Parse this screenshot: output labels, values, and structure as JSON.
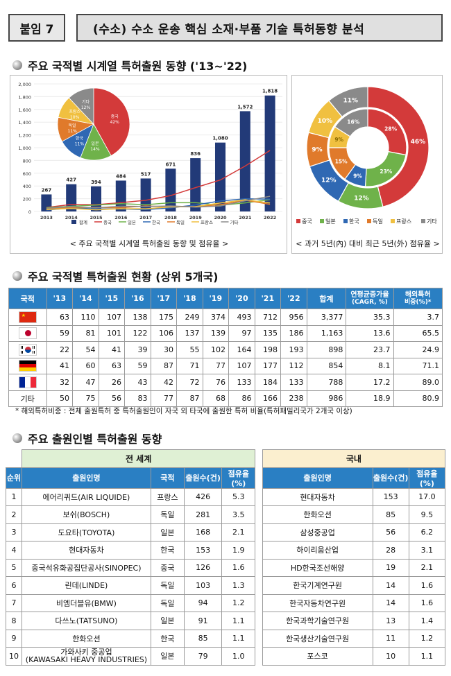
{
  "header": {
    "tag": "붙임 7",
    "title": "(수소) 수소 운송 핵심 소재·부품 기술 특허동향 분석"
  },
  "section1": {
    "title": "주요 국적별 시계열 특허출원 동향 ('13~'22)",
    "caption_left": "< 주요 국적별 시계열 특허출원 동향 및 점유율 >",
    "caption_right": "< 과거 5년(內) 대비 최근 5년(外) 점유율 >"
  },
  "chart_data": [
    {
      "type": "bar",
      "categories": [
        "2013",
        "2014",
        "2015",
        "2016",
        "2017",
        "2018",
        "2019",
        "2020",
        "2021",
        "2022"
      ],
      "series": [
        {
          "name": "합계",
          "values": [
            267,
            427,
            394,
            484,
            517,
            671,
            836,
            1080,
            1572,
            1818
          ],
          "color": "#223a78"
        },
        {
          "name": "중국",
          "values": [
            63,
            110,
            107,
            138,
            175,
            249,
            374,
            493,
            712,
            956
          ],
          "color": "#d33a3a"
        },
        {
          "name": "일본",
          "values": [
            59,
            81,
            101,
            122,
            106,
            137,
            139,
            97,
            135,
            186
          ],
          "color": "#6fb24a"
        },
        {
          "name": "한국",
          "values": [
            22,
            54,
            41,
            39,
            30,
            55,
            102,
            164,
            198,
            193
          ],
          "color": "#2f68b3"
        },
        {
          "name": "독일",
          "values": [
            41,
            60,
            63,
            59,
            87,
            71,
            77,
            107,
            177,
            112
          ],
          "color": "#e07a2b"
        },
        {
          "name": "프랑스",
          "values": [
            32,
            47,
            26,
            43,
            42,
            72,
            76,
            133,
            184,
            133
          ],
          "color": "#f0c040"
        },
        {
          "name": "기타",
          "values": [
            50,
            75,
            56,
            83,
            77,
            87,
            68,
            86,
            166,
            238
          ],
          "color": "#8a8a8a"
        }
      ],
      "ylim": [
        0,
        2000
      ],
      "yticks": [
        "0",
        "200",
        "400",
        "600",
        "800",
        "1,000",
        "1,200",
        "1,400",
        "1,600",
        "1,800",
        "2,000"
      ],
      "data_labels": [
        "267",
        "427",
        "394",
        "484",
        "517",
        "671",
        "836",
        "1,080",
        "1,572",
        "1,818"
      ],
      "legend": "bottom"
    },
    {
      "type": "pie",
      "labels": [
        "중국",
        "일본",
        "한국",
        "독일",
        "프랑스",
        "기타"
      ],
      "values": [
        42,
        14,
        11,
        11,
        10,
        12
      ],
      "label_text": [
        "중국\n42%",
        "일본\n14%",
        "한국\n11%",
        "독일\n11%",
        "프랑스\n10%",
        "기타\n12%"
      ],
      "colors": [
        "#d33a3a",
        "#6fb24a",
        "#2f68b3",
        "#e07a2b",
        "#f0c040",
        "#8a8a8a"
      ]
    },
    {
      "type": "pie",
      "subtype": "donut",
      "labels": [
        "중국",
        "일본",
        "한국",
        "독일",
        "프랑스",
        "기타"
      ],
      "inner": [
        28,
        23,
        9,
        15,
        9,
        16
      ],
      "outer": [
        46,
        12,
        12,
        9,
        10,
        11
      ],
      "inner_text": [
        "28%",
        "23%",
        "9%",
        "15%",
        "9%",
        "16%"
      ],
      "outer_text": [
        "46%",
        "12%",
        "12%",
        "9%",
        "10%",
        "11%"
      ],
      "colors": [
        "#d33a3a",
        "#6fb24a",
        "#2f68b3",
        "#e07a2b",
        "#f0c040",
        "#8a8a8a"
      ],
      "legend": [
        "중국",
        "일본",
        "한국",
        "독일",
        "프랑스",
        "기타"
      ]
    }
  ],
  "section2": {
    "title": "주요 국적별 특허출원 현황 (상위 5개국)",
    "headers": [
      "국적",
      "'13",
      "'14",
      "'15",
      "'16",
      "'17",
      "'18",
      "'19",
      "'20",
      "'21",
      "'22",
      "합계",
      "연평균증가율\n(CAGR, %)",
      "해외특허\n비중(%)*"
    ],
    "rows": [
      {
        "flag": "cn",
        "label": "",
        "cells": [
          "63",
          "110",
          "107",
          "138",
          "175",
          "249",
          "374",
          "493",
          "712",
          "956",
          "3,377",
          "35.3",
          "3.7"
        ]
      },
      {
        "flag": "jp",
        "label": "",
        "cells": [
          "59",
          "81",
          "101",
          "122",
          "106",
          "137",
          "139",
          "97",
          "135",
          "186",
          "1,163",
          "13.6",
          "65.5"
        ]
      },
      {
        "flag": "kr",
        "label": "",
        "cells": [
          "22",
          "54",
          "41",
          "39",
          "30",
          "55",
          "102",
          "164",
          "198",
          "193",
          "898",
          "23.7",
          "24.9"
        ]
      },
      {
        "flag": "de",
        "label": "",
        "cells": [
          "41",
          "60",
          "63",
          "59",
          "87",
          "71",
          "77",
          "107",
          "177",
          "112",
          "854",
          "8.1",
          "71.1"
        ]
      },
      {
        "flag": "fr",
        "label": "",
        "cells": [
          "32",
          "47",
          "26",
          "43",
          "42",
          "72",
          "76",
          "133",
          "184",
          "133",
          "788",
          "17.2",
          "89.0"
        ]
      },
      {
        "flag": "",
        "label": "기타",
        "cells": [
          "50",
          "75",
          "56",
          "83",
          "77",
          "87",
          "68",
          "86",
          "166",
          "238",
          "986",
          "18.9",
          "80.9"
        ]
      }
    ],
    "note": "* 해외특허비중 : 전체 출원특허 중 특허출원인이 자국 외 타국에 출원한 특허 비율(특허패밀리국가 2개국 이상)"
  },
  "section3": {
    "title": "주요 출원인별 특허출원 동향",
    "group_world": "전 세계",
    "group_domestic": "국내",
    "headers": [
      "순위",
      "출원인명",
      "국적",
      "출원수(건)",
      "점유율(%)",
      "출원인명",
      "출원수(건)",
      "점유율(%)"
    ],
    "rows": [
      [
        "1",
        "에어리퀴드(AIR LIQUIDE)",
        "프랑스",
        "426",
        "5.3",
        "현대자동차",
        "153",
        "17.0"
      ],
      [
        "2",
        "보쉬(BOSCH)",
        "독일",
        "281",
        "3.5",
        "한화오션",
        "85",
        "9.5"
      ],
      [
        "3",
        "도요타(TOYOTA)",
        "일본",
        "168",
        "2.1",
        "삼성중공업",
        "56",
        "6.2"
      ],
      [
        "4",
        "현대자동차",
        "한국",
        "153",
        "1.9",
        "하이리움산업",
        "28",
        "3.1"
      ],
      [
        "5",
        "중국석유화공집단공사(SINOPEC)",
        "중국",
        "126",
        "1.6",
        "HD한국조선해양",
        "19",
        "2.1"
      ],
      [
        "6",
        "린데(LINDE)",
        "독일",
        "103",
        "1.3",
        "한국기계연구원",
        "14",
        "1.6"
      ],
      [
        "7",
        "비엠더블유(BMW)",
        "독일",
        "94",
        "1.2",
        "한국자동차연구원",
        "14",
        "1.6"
      ],
      [
        "8",
        "다쓰노(TATSUNO)",
        "일본",
        "91",
        "1.1",
        "한국과학기술연구원",
        "13",
        "1.4"
      ],
      [
        "9",
        "한화오션",
        "한국",
        "85",
        "1.1",
        "한국생산기술연구원",
        "11",
        "1.2"
      ],
      [
        "10",
        "가와사키 중공업\n(KAWASAKI HEAVY INDUSTRIES)",
        "일본",
        "79",
        "1.0",
        "포스코",
        "10",
        "1.1"
      ]
    ]
  }
}
